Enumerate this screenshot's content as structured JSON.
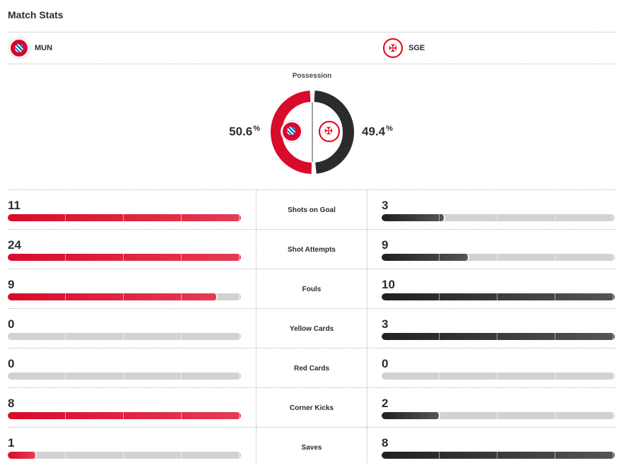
{
  "title": "Match Stats",
  "teams": {
    "home": {
      "abbr": "MUN",
      "logo_icon": "bayern-crest-icon"
    },
    "away": {
      "abbr": "SGE",
      "logo_icon": "eintracht-eagle-icon"
    }
  },
  "possession": {
    "label": "Possession",
    "home_value": "50.6",
    "away_value": "49.4",
    "unit": "%"
  },
  "colors": {
    "home": "#d80b2b",
    "away": "#2b2b2b",
    "track": "#d2d2d2"
  },
  "stats": [
    {
      "label": "Shots on Goal",
      "home": "11",
      "away": "3",
      "home_fill": 1.0,
      "away_fill": 0.273
    },
    {
      "label": "Shot Attempts",
      "home": "24",
      "away": "9",
      "home_fill": 1.0,
      "away_fill": 0.375
    },
    {
      "label": "Fouls",
      "home": "9",
      "away": "10",
      "home_fill": 0.9,
      "away_fill": 1.0
    },
    {
      "label": "Yellow Cards",
      "home": "0",
      "away": "3",
      "home_fill": 0.0,
      "away_fill": 1.0
    },
    {
      "label": "Red Cards",
      "home": "0",
      "away": "0",
      "home_fill": 0.0,
      "away_fill": 0.0
    },
    {
      "label": "Corner Kicks",
      "home": "8",
      "away": "2",
      "home_fill": 1.0,
      "away_fill": 0.25
    },
    {
      "label": "Saves",
      "home": "1",
      "away": "8",
      "home_fill": 0.125,
      "away_fill": 1.0
    }
  ]
}
